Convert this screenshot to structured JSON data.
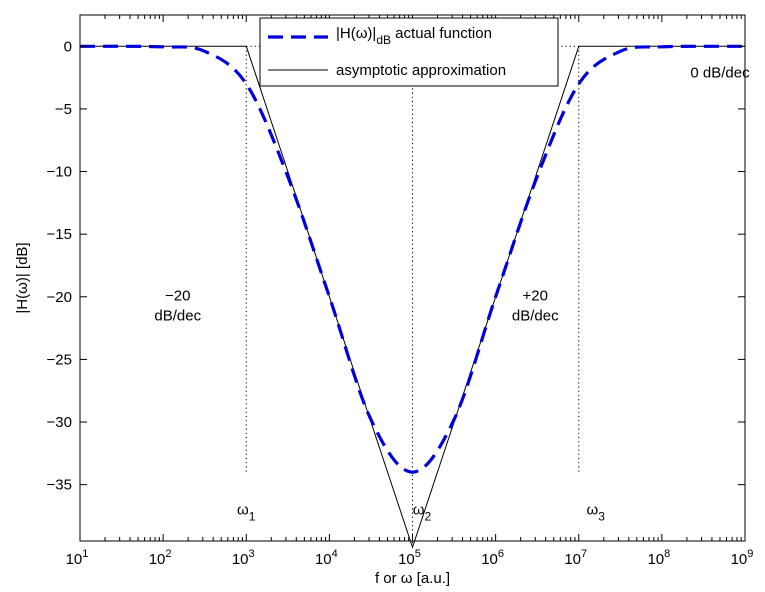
{
  "chart_data": {
    "type": "line",
    "xlabel": "f  or  ω   [a.u.]",
    "ylabel": "|H(ω)|  [dB]",
    "x_scale": "log",
    "xlim": [
      10,
      1000000000
    ],
    "ylim": [
      -39.5,
      2.5
    ],
    "grid": false,
    "legend_position": "top-center",
    "x_ticks": [
      {
        "value": 10,
        "base": "10",
        "exp": "1"
      },
      {
        "value": 100,
        "base": "10",
        "exp": "2"
      },
      {
        "value": 1000,
        "base": "10",
        "exp": "3"
      },
      {
        "value": 10000,
        "base": "10",
        "exp": "4"
      },
      {
        "value": 100000,
        "base": "10",
        "exp": "5"
      },
      {
        "value": 1000000,
        "base": "10",
        "exp": "6"
      },
      {
        "value": 10000000,
        "base": "10",
        "exp": "7"
      },
      {
        "value": 100000000,
        "base": "10",
        "exp": "8"
      },
      {
        "value": 1000000000,
        "base": "10",
        "exp": "9"
      }
    ],
    "y_ticks": [
      {
        "value": 0,
        "label": "0"
      },
      {
        "value": -5,
        "label": "−5"
      },
      {
        "value": -10,
        "label": "−10"
      },
      {
        "value": -15,
        "label": "−15"
      },
      {
        "value": -20,
        "label": "−20"
      },
      {
        "value": -25,
        "label": "−25"
      },
      {
        "value": -30,
        "label": "−30"
      },
      {
        "value": -35,
        "label": "−35"
      }
    ],
    "series": [
      {
        "name_main": "|H(ω)|",
        "name_sub": "dB",
        "name_rest": " actual function",
        "color": "#0000dd",
        "style": "dashed",
        "x": [
          10,
          100,
          316,
          1000,
          3162,
          10000,
          31623,
          100000,
          316228,
          1000000,
          3162278,
          10000000,
          31622777,
          100000000,
          1000000000
        ],
        "y": [
          0,
          -0.04,
          -0.4,
          -3.0,
          -10.4,
          -20.0,
          -29.8,
          -34.0,
          -29.8,
          -20.0,
          -10.4,
          -3.0,
          -0.4,
          -0.04,
          0
        ]
      },
      {
        "name": "asymptotic approximation",
        "color": "#000000",
        "style": "solid",
        "x": [
          10,
          1000,
          100000,
          10000000,
          1000000000
        ],
        "y": [
          0,
          0,
          -40,
          0,
          0
        ]
      }
    ],
    "reference_lines": {
      "vertical_dotted": [
        {
          "x": 1000,
          "y_top": 0,
          "y_bottom": -34
        },
        {
          "x": 100000,
          "y_top": 0,
          "y_bottom": -40
        },
        {
          "x": 10000000,
          "y_top": 0,
          "y_bottom": -34
        }
      ],
      "horizontal_dotted": {
        "y": 0,
        "x_from": 1000,
        "x_to": 10000000
      }
    },
    "annotations": [
      {
        "lines": [
          "0 dB/dec"
        ],
        "x": 20000,
        "y": -2.5
      },
      {
        "lines": [
          "0 dB/dec"
        ],
        "x": 500000000,
        "y": -2.5
      },
      {
        "lines": [
          "−20",
          "dB/dec"
        ],
        "x": 150,
        "y": -20.3
      },
      {
        "lines": [
          "+20",
          "dB/dec"
        ],
        "x": 3000000,
        "y": -20.3
      }
    ],
    "omega_labels": [
      {
        "text": "ω",
        "sub": "1",
        "x": 1000,
        "y": -37.4
      },
      {
        "text": "ω",
        "sub": "2",
        "x": 130000,
        "y": -37.4
      },
      {
        "text": "ω",
        "sub": "3",
        "x": 16000000,
        "y": -37.4
      }
    ]
  }
}
